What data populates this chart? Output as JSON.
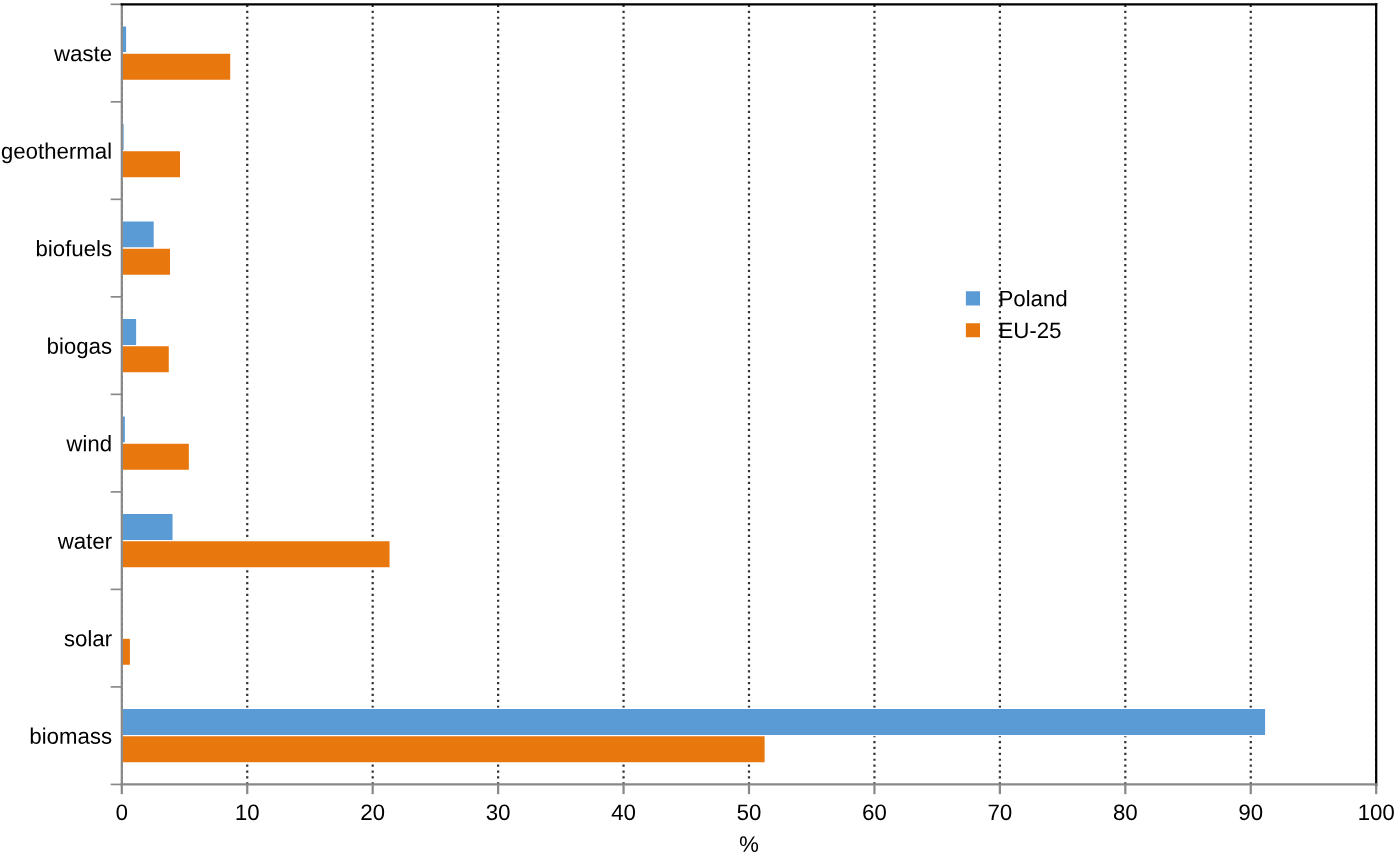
{
  "chart_data": {
    "type": "bar",
    "orientation": "horizontal",
    "xlabel": "%",
    "categories": [
      "waste",
      "geothermal",
      "biofuels",
      "biogas",
      "wind",
      "water",
      "solar",
      "biomass"
    ],
    "series": [
      {
        "name": "Poland",
        "color": "#5b9bd5",
        "values": [
          0.4,
          0.2,
          2.6,
          1.2,
          0.3,
          4.1,
          null,
          91.2
        ]
      },
      {
        "name": "EU-25",
        "color": "#e8770e",
        "values": [
          8.7,
          4.7,
          3.9,
          3.8,
          5.4,
          21.4,
          0.7,
          51.3
        ]
      }
    ],
    "xlim": [
      0,
      100
    ],
    "xticks": [
      0,
      10,
      20,
      30,
      40,
      50,
      60,
      70,
      80,
      90,
      100
    ],
    "grid": "x",
    "legend": "right"
  }
}
